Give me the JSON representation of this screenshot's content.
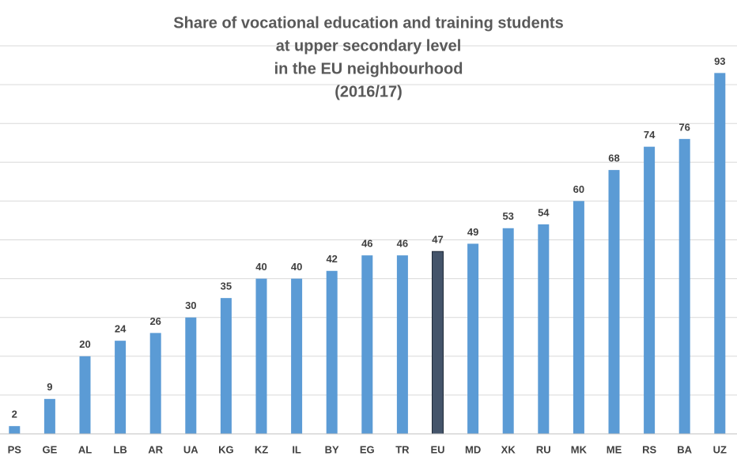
{
  "chart_data": {
    "type": "bar",
    "title": [
      "Share of vocational education and training students",
      "at upper secondary level",
      "in the EU neighbourhood",
      "(2016/17)"
    ],
    "categories": [
      "PS",
      "GE",
      "AL",
      "LB",
      "AR",
      "UA",
      "KG",
      "KZ",
      "IL",
      "BY",
      "EG",
      "TR",
      "EU",
      "MD",
      "XK",
      "RU",
      "MK",
      "ME",
      "RS",
      "BA",
      "UZ"
    ],
    "values": [
      2,
      9,
      20,
      24,
      26,
      30,
      35,
      40,
      40,
      42,
      46,
      46,
      47,
      49,
      53,
      54,
      60,
      68,
      74,
      76,
      93
    ],
    "colors": [
      "#5b9bd5",
      "#5b9bd5",
      "#5b9bd5",
      "#5b9bd5",
      "#5b9bd5",
      "#5b9bd5",
      "#5b9bd5",
      "#5b9bd5",
      "#5b9bd5",
      "#5b9bd5",
      "#5b9bd5",
      "#5b9bd5",
      "#44546a",
      "#5b9bd5",
      "#5b9bd5",
      "#5b9bd5",
      "#5b9bd5",
      "#5b9bd5",
      "#5b9bd5",
      "#5b9bd5",
      "#5b9bd5"
    ],
    "ylim": [
      0,
      100
    ],
    "yticks": [
      0,
      10,
      20,
      30,
      40,
      50,
      60,
      70,
      80,
      90,
      100
    ],
    "show_ytick_labels": false,
    "grid": true
  }
}
